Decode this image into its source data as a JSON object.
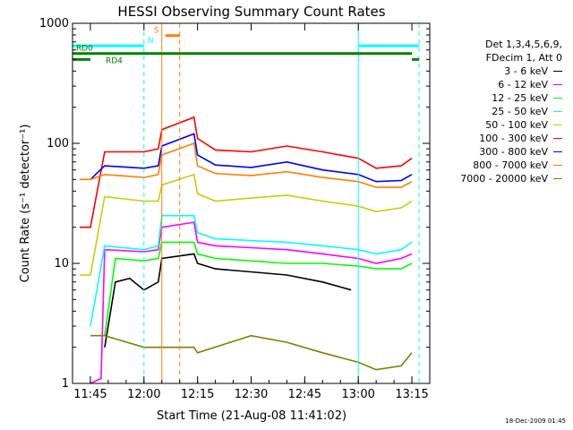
{
  "chart_data": {
    "type": "line",
    "title": "HESSI Observing Summary Count Rates",
    "xlabel": "Start Time (21-Aug-08 11:41:02)",
    "ylabel": "Count Rate (s⁻¹ detector⁻¹)",
    "y_scale": "log",
    "ylim": [
      1,
      1000
    ],
    "xlim": [
      "11:40",
      "13:20"
    ],
    "x_ticks": [
      "11:45",
      "12:00",
      "12:15",
      "12:30",
      "12:45",
      "13:00",
      "13:15"
    ],
    "y_ticks": [
      1,
      10,
      100,
      1000
    ],
    "legend_position": "right",
    "legend_header": [
      "Det 1,3,4,5,6,9,",
      "FDecim 1, Att 0"
    ],
    "series": [
      {
        "name": "3 - 6 keV",
        "color": "#000000",
        "points": [
          [
            "11:49",
            2
          ],
          [
            "11:52",
            7
          ],
          [
            "11:56",
            7.5
          ],
          [
            "12:00",
            6
          ],
          [
            "12:04",
            7
          ],
          [
            "12:05",
            11
          ],
          [
            "12:14",
            12
          ],
          [
            "12:15",
            10
          ],
          [
            "12:20",
            9
          ],
          [
            "12:30",
            8.5
          ],
          [
            "12:40",
            8
          ],
          [
            "12:50",
            7
          ],
          [
            "12:58",
            6
          ]
        ]
      },
      {
        "name": "6 - 12 keV",
        "color": "#ff00ff",
        "points": [
          [
            "11:45",
            1
          ],
          [
            "11:48",
            1.1
          ],
          [
            "11:49",
            13
          ],
          [
            "12:00",
            12.5
          ],
          [
            "12:04",
            13
          ],
          [
            "12:05",
            20
          ],
          [
            "12:14",
            22
          ],
          [
            "12:15",
            15
          ],
          [
            "12:20",
            14
          ],
          [
            "12:30",
            13.5
          ],
          [
            "12:40",
            13
          ],
          [
            "12:50",
            12
          ],
          [
            "13:00",
            11
          ],
          [
            "13:05",
            10
          ],
          [
            "13:12",
            11
          ],
          [
            "13:15",
            12
          ]
        ]
      },
      {
        "name": "12 - 25 keV",
        "color": "#00ff00",
        "points": [
          [
            "11:49",
            2.5
          ],
          [
            "11:52",
            11
          ],
          [
            "12:00",
            10.5
          ],
          [
            "12:04",
            11
          ],
          [
            "12:05",
            15
          ],
          [
            "12:14",
            15
          ],
          [
            "12:15",
            12
          ],
          [
            "12:20",
            11
          ],
          [
            "12:30",
            10.5
          ],
          [
            "12:40",
            10
          ],
          [
            "12:50",
            10
          ],
          [
            "13:00",
            9.5
          ],
          [
            "13:05",
            9
          ],
          [
            "13:12",
            9
          ],
          [
            "13:15",
            10
          ]
        ]
      },
      {
        "name": "25 - 50 keV",
        "color": "#00ffff",
        "points": [
          [
            "11:45",
            3
          ],
          [
            "11:49",
            14
          ],
          [
            "12:00",
            13
          ],
          [
            "12:04",
            14
          ],
          [
            "12:05",
            25
          ],
          [
            "12:14",
            25
          ],
          [
            "12:15",
            18
          ],
          [
            "12:20",
            16
          ],
          [
            "12:30",
            15.5
          ],
          [
            "12:40",
            15
          ],
          [
            "12:50",
            14
          ],
          [
            "13:00",
            13
          ],
          [
            "13:05",
            12
          ],
          [
            "13:12",
            13
          ],
          [
            "13:15",
            15
          ]
        ]
      },
      {
        "name": "50 - 100 keV",
        "color": "#cccc00",
        "points": [
          [
            "11:42",
            8
          ],
          [
            "11:45",
            8
          ],
          [
            "11:49",
            36
          ],
          [
            "12:00",
            33
          ],
          [
            "12:04",
            33
          ],
          [
            "12:05",
            45
          ],
          [
            "12:14",
            55
          ],
          [
            "12:15",
            38
          ],
          [
            "12:20",
            33
          ],
          [
            "12:30",
            35
          ],
          [
            "12:40",
            37
          ],
          [
            "12:50",
            33
          ],
          [
            "13:00",
            30
          ],
          [
            "13:05",
            27
          ],
          [
            "13:12",
            29
          ],
          [
            "13:15",
            33
          ]
        ]
      },
      {
        "name": "100 - 300 keV",
        "color": "#ff0000",
        "points": [
          [
            "11:42",
            20
          ],
          [
            "11:45",
            20
          ],
          [
            "11:49",
            85
          ],
          [
            "12:00",
            85
          ],
          [
            "12:04",
            90
          ],
          [
            "12:05",
            130
          ],
          [
            "12:14",
            165
          ],
          [
            "12:15",
            110
          ],
          [
            "12:20",
            88
          ],
          [
            "12:30",
            85
          ],
          [
            "12:40",
            95
          ],
          [
            "12:50",
            85
          ],
          [
            "13:00",
            75
          ],
          [
            "13:05",
            62
          ],
          [
            "13:12",
            65
          ],
          [
            "13:15",
            75
          ]
        ]
      },
      {
        "name": "300 - 800 keV",
        "color": "#0000ff",
        "points": [
          [
            "11:45",
            50
          ],
          [
            "11:49",
            65
          ],
          [
            "12:00",
            62
          ],
          [
            "12:04",
            65
          ],
          [
            "12:05",
            95
          ],
          [
            "12:14",
            120
          ],
          [
            "12:15",
            80
          ],
          [
            "12:20",
            66
          ],
          [
            "12:30",
            63
          ],
          [
            "12:40",
            70
          ],
          [
            "12:50",
            60
          ],
          [
            "13:00",
            55
          ],
          [
            "13:05",
            48
          ],
          [
            "13:12",
            49
          ],
          [
            "13:15",
            55
          ]
        ]
      },
      {
        "name": "800 - 7000 keV",
        "color": "#ff8000",
        "points": [
          [
            "11:42",
            50
          ],
          [
            "11:45",
            50
          ],
          [
            "11:49",
            55
          ],
          [
            "12:00",
            52
          ],
          [
            "12:04",
            55
          ],
          [
            "12:05",
            80
          ],
          [
            "12:14",
            100
          ],
          [
            "12:15",
            65
          ],
          [
            "12:20",
            56
          ],
          [
            "12:30",
            54
          ],
          [
            "12:40",
            58
          ],
          [
            "12:50",
            52
          ],
          [
            "13:00",
            48
          ],
          [
            "13:05",
            43
          ],
          [
            "13:12",
            43
          ],
          [
            "13:15",
            48
          ]
        ]
      },
      {
        "name": "7000 - 20000 keV",
        "color": "#808000",
        "points": [
          [
            "11:45",
            2.5
          ],
          [
            "11:49",
            2.5
          ],
          [
            "12:00",
            2
          ],
          [
            "12:04",
            2
          ],
          [
            "12:14",
            2
          ],
          [
            "12:15",
            1.8
          ],
          [
            "12:30",
            2.5
          ],
          [
            "12:40",
            2.2
          ],
          [
            "12:50",
            1.8
          ],
          [
            "13:00",
            1.5
          ],
          [
            "13:05",
            1.3
          ],
          [
            "13:12",
            1.4
          ],
          [
            "13:15",
            1.8
          ]
        ]
      }
    ],
    "annotations": [
      {
        "label": "N",
        "color": "#00ffff",
        "level": 650,
        "spans": [
          [
            "11:40",
            "12:00"
          ],
          [
            "13:00",
            "13:17"
          ]
        ]
      },
      {
        "label": "S",
        "color": "#ff8000",
        "level": 790,
        "spans": [
          [
            "12:06",
            "12:10"
          ]
        ]
      },
      {
        "label": "RD0",
        "color": "#008000",
        "level": 560,
        "spans": [
          [
            "11:40",
            "13:15"
          ]
        ]
      },
      {
        "label": "RD4",
        "color": "#008000",
        "level": 500,
        "spans": [
          [
            "11:40",
            "11:45"
          ],
          [
            "13:15",
            "13:17"
          ]
        ]
      }
    ],
    "vertical_markers": [
      {
        "time": "12:00",
        "color": "#00ffff",
        "style": "dashed"
      },
      {
        "time": "12:05",
        "color": "#ff8000",
        "style": "solid"
      },
      {
        "time": "12:10",
        "color": "#ff8000",
        "style": "dashed"
      },
      {
        "time": "13:00",
        "color": "#00ffff",
        "style": "solid"
      },
      {
        "time": "13:17",
        "color": "#00ffff",
        "style": "dashed"
      }
    ],
    "footer_stamp": "18-Dec-2009 01:45"
  }
}
